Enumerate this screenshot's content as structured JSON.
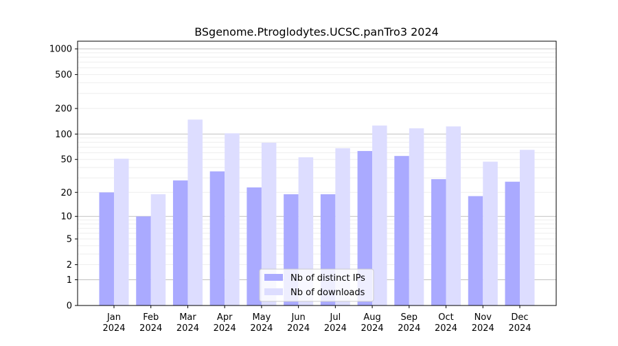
{
  "chart_data": {
    "type": "bar",
    "title": "BSgenome.Ptroglodytes.UCSC.panTro3 2024",
    "xlabel": "",
    "ylabel": "",
    "yscale": "symlog (log10(1+y))",
    "ylim": [
      0,
      1200
    ],
    "yticks": [
      0,
      1,
      2,
      5,
      10,
      20,
      50,
      100,
      200,
      500,
      1000
    ],
    "grid": true,
    "legend_position": "bottom-center",
    "categories": [
      "Jan\n2024",
      "Feb\n2024",
      "Mar\n2024",
      "Apr\n2024",
      "May\n2024",
      "Jun\n2024",
      "Jul\n2024",
      "Aug\n2024",
      "Sep\n2024",
      "Oct\n2024",
      "Nov\n2024",
      "Dec\n2024"
    ],
    "category_labels": [
      {
        "month": "Jan",
        "year": "2024"
      },
      {
        "month": "Feb",
        "year": "2024"
      },
      {
        "month": "Mar",
        "year": "2024"
      },
      {
        "month": "Apr",
        "year": "2024"
      },
      {
        "month": "May",
        "year": "2024"
      },
      {
        "month": "Jun",
        "year": "2024"
      },
      {
        "month": "Jul",
        "year": "2024"
      },
      {
        "month": "Aug",
        "year": "2024"
      },
      {
        "month": "Sep",
        "year": "2024"
      },
      {
        "month": "Oct",
        "year": "2024"
      },
      {
        "month": "Nov",
        "year": "2024"
      },
      {
        "month": "Dec",
        "year": "2024"
      }
    ],
    "series": [
      {
        "name": "Nb of distinct IPs",
        "color": "#aaaaff",
        "values": [
          20,
          10,
          28,
          36,
          23,
          19,
          19,
          63,
          55,
          29,
          18,
          27
        ]
      },
      {
        "name": "Nb of downloads",
        "color": "#ddddff",
        "values": [
          51,
          19,
          148,
          102,
          79,
          53,
          68,
          126,
          117,
          123,
          47,
          65
        ]
      }
    ]
  }
}
